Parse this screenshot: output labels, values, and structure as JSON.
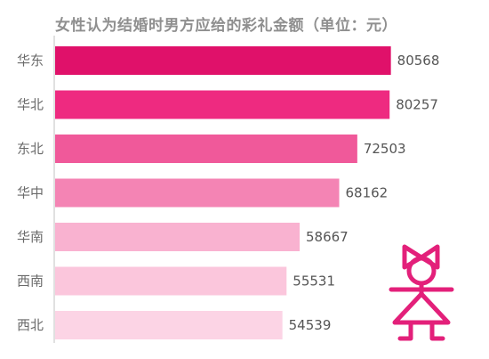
{
  "chart_data": {
    "type": "bar",
    "orientation": "horizontal",
    "title": "女性认为结婚时男方应给的彩礼金额（单位：元）",
    "categories": [
      "华东",
      "华北",
      "东北",
      "华中",
      "华南",
      "西南",
      "西北"
    ],
    "values": [
      80568,
      80257,
      72503,
      68162,
      58667,
      55531,
      54539
    ],
    "colors": [
      "#e0116a",
      "#ee2a80",
      "#f0599a",
      "#f484b4",
      "#f9b2d0",
      "#fbc6dc",
      "#fcd4e5"
    ],
    "xlim": [
      0,
      100000
    ],
    "grid": false,
    "legend": "none"
  },
  "decoration": {
    "icon": "girl-figure-icon",
    "color": "#e3207a"
  }
}
